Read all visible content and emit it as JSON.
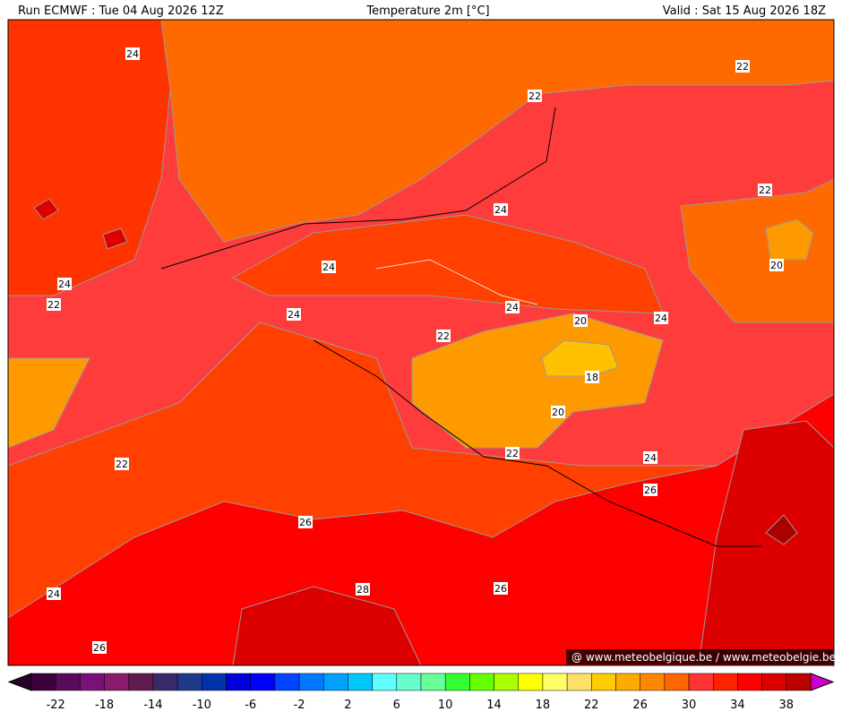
{
  "header": {
    "run": "Run ECMWF : Tue 04 Aug 2026 12Z",
    "title": "Temperature 2m [°C]",
    "valid": "Valid : Sat 15 Aug 2026 18Z"
  },
  "map": {
    "contour_labels": [
      24,
      22,
      22,
      22,
      20,
      24,
      24,
      24,
      22,
      24,
      24,
      20,
      24,
      22,
      18,
      20,
      22,
      24,
      22,
      26,
      26,
      24,
      28,
      26,
      26
    ]
  },
  "colorbar": {
    "ticks": [
      -22,
      -18,
      -14,
      -10,
      -6,
      -2,
      2,
      6,
      10,
      14,
      18,
      22,
      26,
      30,
      34,
      38
    ],
    "colors": [
      "#3d003d",
      "#5a0a5a",
      "#7a107a",
      "#8a1a6a",
      "#5e1b4e",
      "#3a2a6a",
      "#1e3a8a",
      "#0033aa",
      "#0000dd",
      "#0000ff",
      "#0044ff",
      "#0077ff",
      "#00a0ff",
      "#00c8ff",
      "#60ffff",
      "#66ffcc",
      "#66ff99",
      "#33ff33",
      "#66ff00",
      "#aaff00",
      "#ffff00",
      "#ffff66",
      "#ffe066",
      "#ffcc00",
      "#ffaa00",
      "#ff8800",
      "#ff6600",
      "#ff3333",
      "#ff2200",
      "#ff0000",
      "#dd0000",
      "#bb0000"
    ]
  },
  "credit": "@ www.meteobelgique.be / www.meteobelgie.be"
}
